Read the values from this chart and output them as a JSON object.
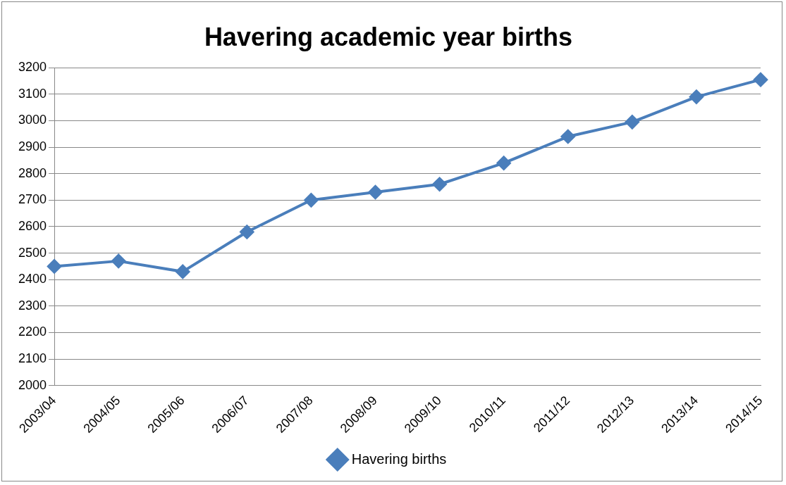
{
  "chart_data": {
    "type": "line",
    "title": "Havering academic year births",
    "categories": [
      "2003/04",
      "2004/05",
      "2005/06",
      "2006/07",
      "2007/08",
      "2008/09",
      "2009/10",
      "2010/11",
      "2011/12",
      "2012/13",
      "2013/14",
      "2014/15"
    ],
    "series": [
      {
        "name": "Havering births",
        "color": "#4a7ebb",
        "values": [
          2450,
          2470,
          2430,
          2580,
          2700,
          2730,
          2760,
          2840,
          2940,
          2995,
          3090,
          3155
        ]
      }
    ],
    "ylim": [
      2000,
      3200
    ],
    "yticks": [
      2000,
      2100,
      2200,
      2300,
      2400,
      2500,
      2600,
      2700,
      2800,
      2900,
      3000,
      3100,
      3200
    ],
    "grid": "y",
    "legend": "bottom",
    "marker": "diamond",
    "line_style": "solid"
  }
}
